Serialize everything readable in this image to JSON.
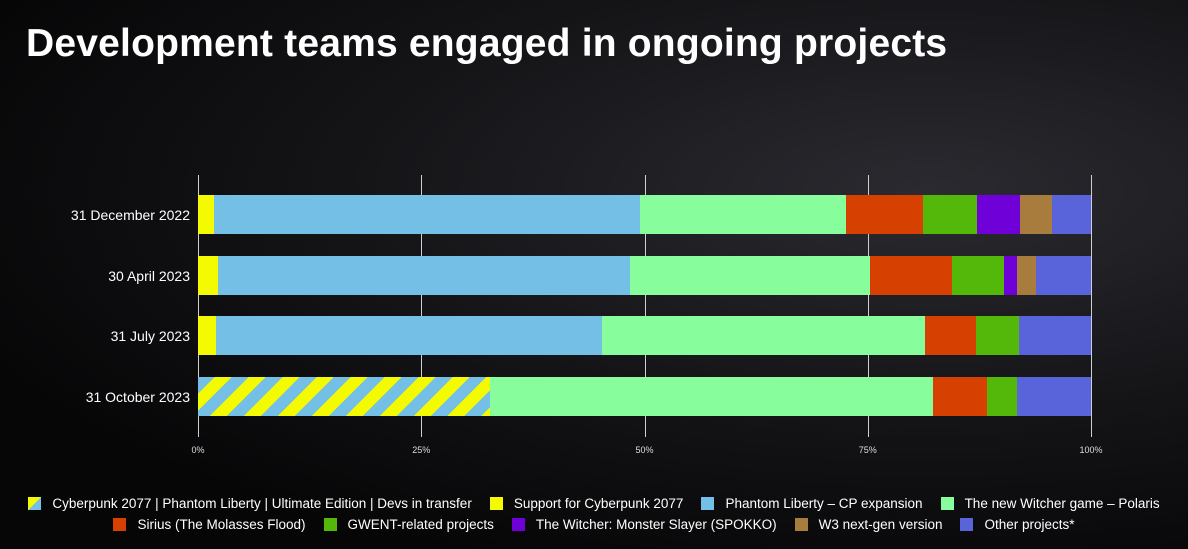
{
  "chart_data": {
    "type": "bar",
    "orientation": "horizontal",
    "stacked": true,
    "percent": true,
    "title": "Development teams engaged in ongoing projects",
    "categories": [
      "31 December 2022",
      "30 April 2023",
      "31 July 2023",
      "31 October 2023"
    ],
    "xlim": [
      0,
      100
    ],
    "xticks": [
      "0%",
      "25%",
      "50%",
      "75%",
      "100%"
    ],
    "grid": true,
    "legend_position": "bottom",
    "series": [
      {
        "name": "Cyberpunk 2077 | Phantom Liberty | Ultimate Edition | Devs in transfer",
        "color": "hatch-yellow-blue",
        "values": [
          0,
          0,
          0,
          32.7
        ]
      },
      {
        "name": "Support for Cyberpunk 2077",
        "color": "#f4fa00",
        "values": [
          1.8,
          2.2,
          2.0,
          0
        ]
      },
      {
        "name": "Phantom Liberty – CP expansion",
        "color": "#74bfe6",
        "values": [
          47.7,
          46.2,
          43.2,
          0
        ]
      },
      {
        "name": "The new Witcher game – Polaris",
        "color": "#88fd9c",
        "values": [
          23.1,
          26.9,
          36.2,
          49.6
        ]
      },
      {
        "name": "Sirius (The Molasses Flood)",
        "color": "#d64000",
        "values": [
          8.6,
          9.1,
          5.7,
          6.1
        ]
      },
      {
        "name": "GWENT-related projects",
        "color": "#54b80a",
        "values": [
          6.0,
          5.9,
          4.8,
          3.3
        ]
      },
      {
        "name": "The Witcher: Monster Slayer (SPOKKO)",
        "color": "#7000d8",
        "values": [
          4.9,
          1.4,
          0,
          0
        ]
      },
      {
        "name": "W3 next-gen version",
        "color": "#a87c3c",
        "values": [
          3.5,
          2.2,
          0,
          0
        ]
      },
      {
        "name": "Other projects*",
        "color": "#5a64da",
        "values": [
          4.4,
          6.1,
          8.1,
          8.3
        ]
      }
    ]
  }
}
